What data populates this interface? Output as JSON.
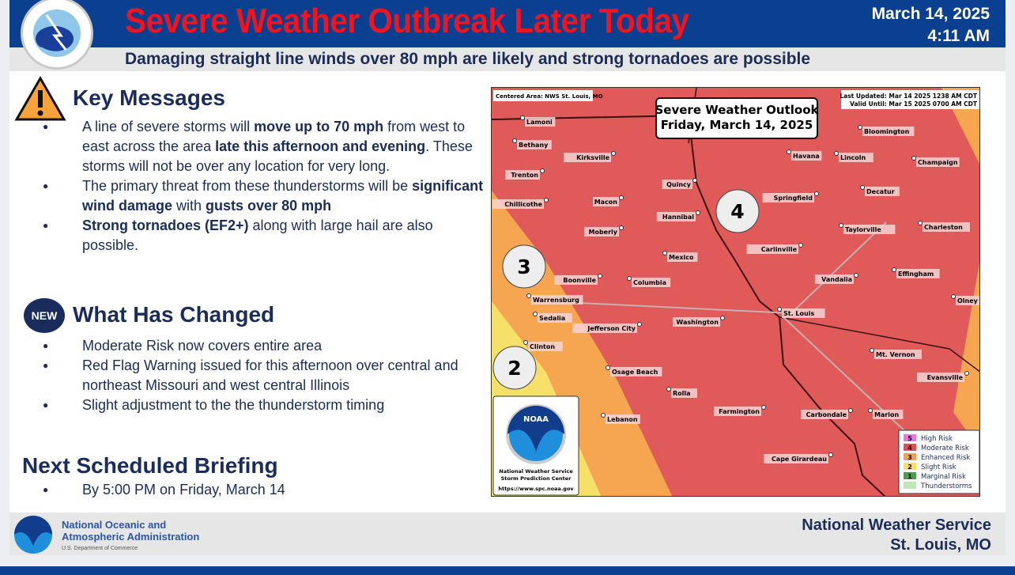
{
  "header": {
    "title": "Severe Weather Outbreak Later Today",
    "date": "March 14, 2025",
    "time": "4:11 AM",
    "subtitle": "Damaging straight line winds over 80 mph are likely and strong tornadoes are possible",
    "logo_text": "NATIONAL WEATHER SERVICE"
  },
  "key_messages": {
    "heading": "Key Messages",
    "icon": "warning-triangle-icon",
    "items": [
      [
        {
          "t": "A line of severe storms will "
        },
        {
          "t": "move up to 70 mph",
          "b": true
        },
        {
          "t": "  from west to east across the area "
        },
        {
          "t": "late this afternoon and evening",
          "b": true
        },
        {
          "t": ".  These storms will not be over any location for very long."
        }
      ],
      [
        {
          "t": "The primary threat from these thunderstorms will be "
        },
        {
          "t": "significant wind damage",
          "b": true
        },
        {
          "t": " with "
        },
        {
          "t": "gusts over 80 mph",
          "b": true
        }
      ],
      [
        {
          "t": "Strong tornadoes (EF2+)",
          "b": true
        },
        {
          "t": " along with large hail are also possible."
        }
      ]
    ]
  },
  "changes": {
    "badge": "NEW",
    "heading": "What Has Changed",
    "items": [
      "Moderate Risk now covers entire area",
      "Red Flag Warning issued for this afternoon over central and northeast Missouri and west central Illinois",
      "Slight adjustment to the the thunderstorm timing"
    ]
  },
  "briefing": {
    "heading": "Next Scheduled Briefing",
    "items": [
      "By 5:00 PM on Friday, March 14"
    ]
  },
  "map": {
    "centered": "Centered Area: NWS St. Louis, MO",
    "updated": "Last Updated: Mar 14 2025 1238 AM CDT",
    "valid": "Valid Until: Mar 15 2025 0700 AM CDT",
    "title1": "Severe Weather Outlook",
    "title2": "Friday, March 14, 2025",
    "risk_labels": [
      "4",
      "3",
      "2"
    ],
    "cities": [
      "Lamoni",
      "Bethany",
      "Trenton",
      "Chillicothe",
      "Kirksville",
      "Macon",
      "Moberly",
      "Mexico",
      "Quincy",
      "Hannibal",
      "Havana",
      "Lincoln",
      "Bloomington",
      "Champaign",
      "Springfield",
      "Decatur",
      "Taylorville",
      "Charleston",
      "Carlinville",
      "Boonville",
      "Columbia",
      "Warrensburg",
      "Sedalia",
      "Jefferson City",
      "Washington",
      "St. Louis",
      "Vandalia",
      "Effingham",
      "Olney",
      "Clinton",
      "Mt. Vernon",
      "Evansville",
      "Osage Beach",
      "Rolla",
      "Farmington",
      "Carbondale",
      "Marion",
      "Lebanon",
      "Cape Girardeau"
    ],
    "noaa": {
      "logo": "NOAA",
      "line1": "National Weather Service",
      "line2": "Storm Prediction Center",
      "url": "https://www.spc.noaa.gov"
    },
    "legend": [
      {
        "n": "5",
        "label": "High Risk",
        "color": "#e07be0"
      },
      {
        "n": "4",
        "label": "Moderate Risk",
        "color": "#e05050"
      },
      {
        "n": "3",
        "label": "Enhanced Risk",
        "color": "#f5a050"
      },
      {
        "n": "2",
        "label": "Slight Risk",
        "color": "#f7e06a"
      },
      {
        "n": "1",
        "label": "Marginal Risk",
        "color": "#4e9a4e"
      },
      {
        "n": "",
        "label": "Thunderstorms",
        "color": "#bfe8b8"
      }
    ],
    "colors": {
      "moderate": "#e05a5a",
      "enhanced": "#f6a550",
      "slight": "#f7e06a"
    }
  },
  "footer": {
    "org1": "National Oceanic and",
    "org2": "Atmospheric Administration",
    "dept": "U.S. Department of Commerce",
    "office1": "National Weather Service",
    "office2": "St. Louis, MO"
  }
}
